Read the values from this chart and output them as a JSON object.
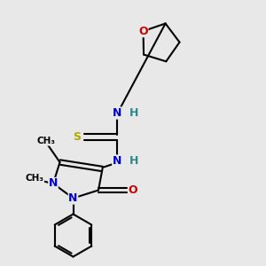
{
  "background_color": "#e8e8e8",
  "line_color": "#000000",
  "lw": 1.5,
  "figsize": [
    3.0,
    3.0
  ],
  "dpi": 100,
  "colors": {
    "N": "#0000cc",
    "O": "#cc0000",
    "S": "#aaaa00",
    "H": "#2a8a8a",
    "C": "#000000"
  }
}
